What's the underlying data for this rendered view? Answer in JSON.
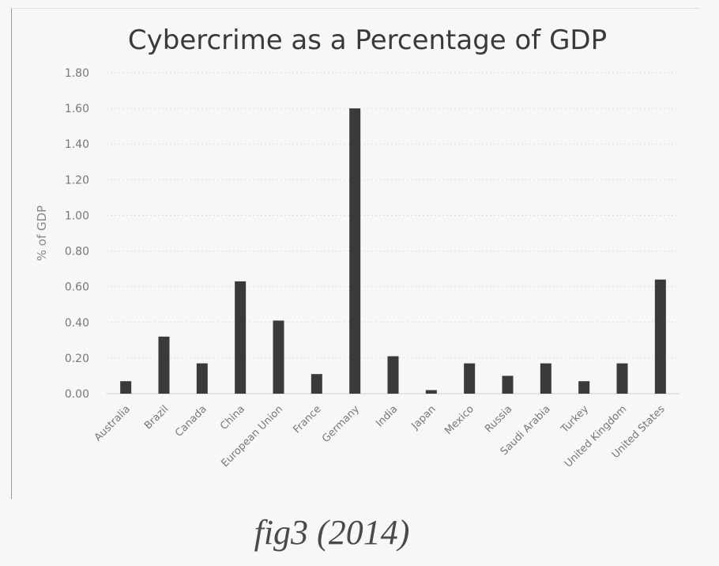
{
  "chart_data": {
    "type": "bar",
    "title": "Cybercrime as a Percentage of GDP",
    "xlabel": "",
    "ylabel": "% of GDP",
    "ylim": [
      0,
      1.8
    ],
    "yticks": [
      "0.00",
      "0.20",
      "0.40",
      "0.60",
      "0.80",
      "1.00",
      "1.20",
      "1.40",
      "1.60",
      "1.80"
    ],
    "grid": true,
    "categories": [
      "Australia",
      "Brazil",
      "Canada",
      "China",
      "European Union",
      "France",
      "Germany",
      "India",
      "Japan",
      "Mexico",
      "Russia",
      "Saudi Arabia",
      "Turkey",
      "United Kingdom",
      "United States"
    ],
    "values": [
      0.07,
      0.32,
      0.17,
      0.63,
      0.41,
      0.11,
      1.6,
      0.21,
      0.02,
      0.17,
      0.1,
      0.17,
      0.07,
      0.17,
      0.64
    ],
    "bar_color": "#3a3a3a",
    "grid_color": "#dedede",
    "axis_text_color": "#777777"
  },
  "caption": "fig3 (2014)"
}
